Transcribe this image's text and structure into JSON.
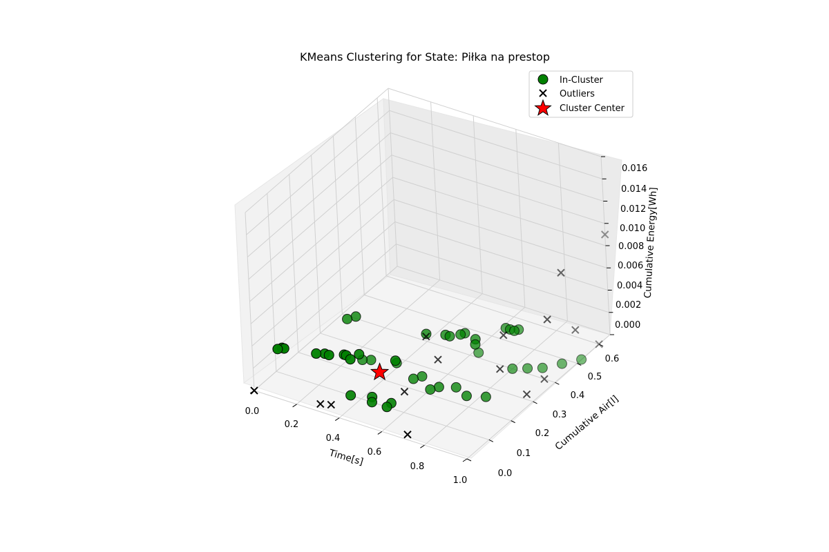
{
  "chart_data": {
    "type": "scatter",
    "projection": "3d",
    "title": "KMeans Clustering for State: Piłka na prestop",
    "xlabel": "Time[s]",
    "ylabel": "Cumulative Air[l]",
    "zlabel": "Cumulative Energy[Wh]",
    "xlim": [
      0,
      1
    ],
    "ylim": [
      0,
      0.65
    ],
    "zlim": [
      0,
      0.016
    ],
    "xticks": [
      "0.0",
      "0.2",
      "0.4",
      "0.6",
      "0.8",
      "1.0"
    ],
    "yticks": [
      "0.0",
      "0.1",
      "0.2",
      "0.3",
      "0.4",
      "0.5",
      "0.6"
    ],
    "zticks": [
      "0.000",
      "0.002",
      "0.004",
      "0.006",
      "0.008",
      "0.010",
      "0.012",
      "0.014",
      "0.016"
    ],
    "grid": true,
    "legend_position": "upper right",
    "legend": [
      {
        "label": "In-Cluster",
        "marker": "circle",
        "color": "#008000"
      },
      {
        "label": "Outliers",
        "marker": "x",
        "color": "#000000"
      },
      {
        "label": "Cluster Center",
        "marker": "star",
        "color": "#ff0000"
      }
    ],
    "colors": {
      "in_cluster": "#008000",
      "outlier": "#000000",
      "center": "#ff0000"
    },
    "series": [
      {
        "name": "In-Cluster",
        "marker": "circle",
        "points": [
          [
            0.35,
            0.1,
            0.0
          ],
          [
            0.43,
            0.12,
            0.0
          ],
          [
            0.45,
            0.1,
            0.0
          ],
          [
            0.52,
            0.12,
            0.0
          ],
          [
            0.52,
            0.1,
            0.0
          ],
          [
            0.25,
            0.25,
            0.0
          ],
          [
            0.28,
            0.26,
            0.0
          ],
          [
            0.38,
            0.28,
            0.0
          ],
          [
            0.5,
            0.24,
            0.0
          ],
          [
            0.52,
            0.26,
            0.0
          ],
          [
            0.6,
            0.22,
            0.0
          ],
          [
            0.62,
            0.24,
            0.0
          ],
          [
            0.68,
            0.26,
            0.0
          ],
          [
            0.75,
            0.24,
            0.0
          ],
          [
            0.82,
            0.26,
            0.0
          ],
          [
            0.62,
            0.42,
            0.0
          ],
          [
            0.8,
            0.4,
            0.0
          ],
          [
            0.85,
            0.42,
            0.0
          ],
          [
            0.9,
            0.44,
            0.0
          ],
          [
            0.95,
            0.48,
            0.0
          ],
          [
            1.0,
            0.52,
            0.0
          ],
          [
            0.1,
            0.02,
            0.004
          ],
          [
            0.12,
            0.03,
            0.004
          ],
          [
            0.11,
            0.03,
            0.004
          ],
          [
            0.25,
            0.05,
            0.004
          ],
          [
            0.28,
            0.06,
            0.004
          ],
          [
            0.3,
            0.06,
            0.004
          ],
          [
            0.35,
            0.08,
            0.004
          ],
          [
            0.36,
            0.08,
            0.004
          ],
          [
            0.39,
            0.07,
            0.004
          ],
          [
            0.4,
            0.1,
            0.004
          ],
          [
            0.55,
            0.12,
            0.004
          ],
          [
            0.22,
            0.22,
            0.004
          ],
          [
            0.24,
            0.24,
            0.004
          ],
          [
            0.55,
            0.26,
            0.004
          ],
          [
            0.62,
            0.28,
            0.004
          ],
          [
            0.64,
            0.28,
            0.004
          ],
          [
            0.67,
            0.3,
            0.004
          ],
          [
            0.68,
            0.31,
            0.004
          ],
          [
            0.74,
            0.3,
            0.004
          ],
          [
            0.76,
            0.28,
            0.004
          ],
          [
            0.8,
            0.38,
            0.004
          ],
          [
            0.82,
            0.38,
            0.004
          ],
          [
            0.84,
            0.38,
            0.004
          ],
          [
            0.85,
            0.39,
            0.004
          ]
        ]
      },
      {
        "name": "Outliers",
        "marker": "x",
        "points": [
          [
            0.0,
            0.0,
            0.0
          ],
          [
            0.28,
            0.03,
            0.0
          ],
          [
            0.32,
            0.04,
            0.0
          ],
          [
            0.7,
            0.02,
            0.0
          ],
          [
            0.95,
            0.32,
            0.0
          ],
          [
            0.6,
            0.26,
            0.002
          ],
          [
            0.85,
            0.3,
            0.002
          ],
          [
            0.82,
            0.35,
            0.004
          ],
          [
            1.0,
            0.38,
            0.006
          ],
          [
            0.56,
            0.25,
            0.004
          ],
          [
            1.0,
            0.5,
            0.003
          ],
          [
            0.95,
            0.4,
            0.0
          ],
          [
            1.0,
            0.6,
            0.0
          ],
          [
            1.0,
            0.45,
            0.009
          ],
          [
            1.0,
            0.65,
            0.009
          ],
          [
            0.52,
            0.18,
            0.0
          ]
        ]
      },
      {
        "name": "Cluster Center",
        "marker": "star",
        "points": [
          [
            0.45,
            0.14,
            0.002
          ]
        ]
      }
    ]
  }
}
